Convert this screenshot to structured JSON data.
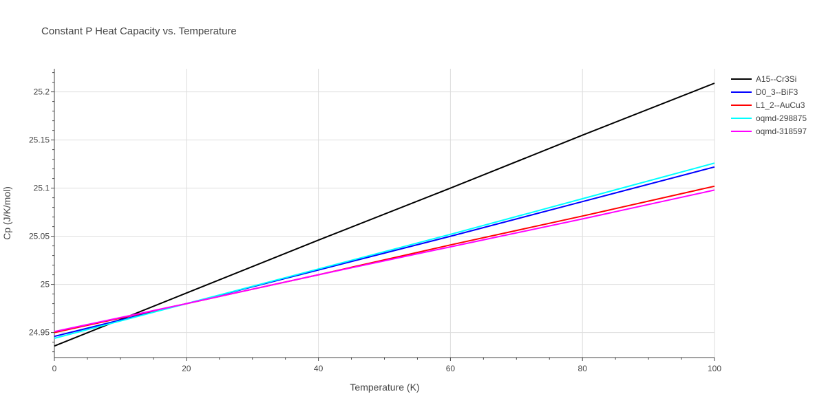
{
  "chart_data": {
    "type": "line",
    "title": "Constant P Heat Capacity vs. Temperature",
    "xlabel": "Temperature (K)",
    "ylabel": "Cp (J/K/mol)",
    "xlim": [
      0,
      100
    ],
    "ylim": [
      24.924,
      25.224
    ],
    "x_ticks": [
      0,
      20,
      40,
      60,
      80,
      100
    ],
    "x_tick_labels": [
      "0",
      "20",
      "40",
      "60",
      "80",
      "100"
    ],
    "y_ticks": [
      24.95,
      25,
      25.05,
      25.1,
      25.15,
      25.2
    ],
    "y_tick_labels": [
      "24.95",
      "25",
      "25.05",
      "25.1",
      "25.15",
      "25.2"
    ],
    "grid": true,
    "legend_position": "top-right",
    "series": [
      {
        "name": "A15--Cr3Si",
        "color": "#000000",
        "x": [
          0,
          20,
          40,
          60,
          80,
          100
        ],
        "y": [
          24.936,
          24.991,
          25.046,
          25.1,
          25.155,
          25.209
        ]
      },
      {
        "name": "D0_3--BiF3",
        "color": "#0000ff",
        "x": [
          0,
          20,
          40,
          60,
          80,
          100
        ],
        "y": [
          24.946,
          24.98,
          25.015,
          25.05,
          25.086,
          25.122
        ]
      },
      {
        "name": "L1_2--AuCu3",
        "color": "#ff0000",
        "x": [
          0,
          20,
          40,
          60,
          80,
          100
        ],
        "y": [
          24.95,
          24.98,
          25.01,
          25.041,
          25.071,
          25.102
        ]
      },
      {
        "name": "oqmd-298875",
        "color": "#00ffff",
        "x": [
          0,
          20,
          40,
          60,
          80,
          100
        ],
        "y": [
          24.944,
          24.98,
          25.016,
          25.052,
          25.089,
          25.126
        ]
      },
      {
        "name": "oqmd-318597",
        "color": "#ff00ff",
        "x": [
          0,
          20,
          40,
          60,
          80,
          100
        ],
        "y": [
          24.951,
          24.98,
          25.01,
          25.039,
          25.068,
          25.098
        ]
      }
    ]
  }
}
